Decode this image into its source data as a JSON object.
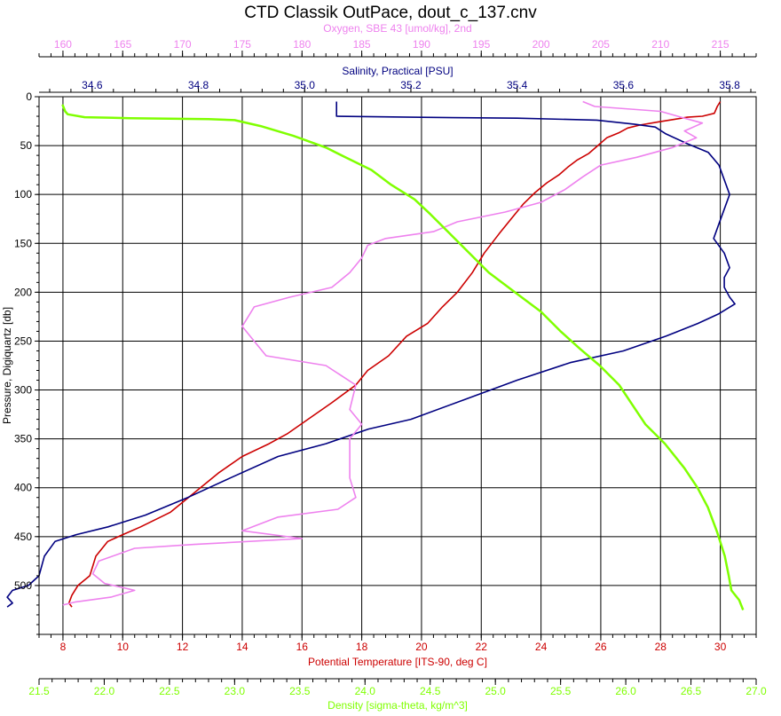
{
  "chart_data": {
    "type": "line",
    "title": "CTD Classik OutPace, dout_c_137.cnv",
    "y_axis": {
      "label": "Pressure, Digiquartz [db]",
      "range": [
        0,
        550
      ],
      "inverted": true,
      "ticks": [
        0,
        50,
        100,
        150,
        200,
        250,
        300,
        350,
        400,
        450,
        500
      ]
    },
    "x_axes": [
      {
        "id": "oxygen",
        "label": "Oxygen, SBE 43 [umol/kg], 2nd",
        "position": "top",
        "color": "#ee82ee",
        "range": [
          158,
          218
        ],
        "ticks": [
          160,
          165,
          170,
          175,
          180,
          185,
          190,
          195,
          200,
          205,
          210,
          215
        ],
        "decimals": 0
      },
      {
        "id": "salinity",
        "label": "Salinity, Practical [PSU]",
        "position": "top",
        "color": "#000080",
        "range": [
          34.5,
          35.85
        ],
        "ticks": [
          34.6,
          34.8,
          35.0,
          35.2,
          35.4,
          35.6,
          35.8
        ],
        "decimals": 1
      },
      {
        "id": "temperature",
        "label": "Potential Temperature [ITS-90, deg C]",
        "position": "bottom",
        "color": "#cc0000",
        "range": [
          7.2,
          31.2
        ],
        "ticks": [
          8,
          10,
          12,
          14,
          16,
          18,
          20,
          22,
          24,
          26,
          28,
          30
        ],
        "decimals": 0
      },
      {
        "id": "density",
        "label": "Density [sigma-theta, kg/m^3]",
        "position": "bottom",
        "color": "#7fff00",
        "range": [
          21.5,
          27.0
        ],
        "ticks": [
          21.5,
          22.0,
          22.5,
          23.0,
          23.5,
          24.0,
          24.5,
          25.0,
          25.5,
          26.0,
          26.5,
          27.0
        ],
        "decimals": 1
      }
    ],
    "grid": true,
    "series": [
      {
        "axis": "temperature",
        "color": "#cc0000",
        "points": [
          [
            30.0,
            5
          ],
          [
            29.9,
            10
          ],
          [
            29.8,
            17
          ],
          [
            29.4,
            20
          ],
          [
            28.9,
            21
          ],
          [
            28.7,
            22
          ],
          [
            28.5,
            23
          ],
          [
            27.9,
            26
          ],
          [
            27.3,
            29
          ],
          [
            26.9,
            32
          ],
          [
            26.6,
            37
          ],
          [
            26.2,
            42
          ],
          [
            25.9,
            50
          ],
          [
            25.6,
            58
          ],
          [
            25.2,
            65
          ],
          [
            24.9,
            72
          ],
          [
            24.6,
            80
          ],
          [
            24.2,
            88
          ],
          [
            23.8,
            98
          ],
          [
            23.4,
            110
          ],
          [
            23.0,
            125
          ],
          [
            22.6,
            140
          ],
          [
            22.1,
            160
          ],
          [
            21.7,
            180
          ],
          [
            21.2,
            200
          ],
          [
            20.7,
            215
          ],
          [
            20.2,
            232
          ],
          [
            19.5,
            245
          ],
          [
            18.9,
            265
          ],
          [
            18.2,
            280
          ],
          [
            17.8,
            295
          ],
          [
            17.0,
            313
          ],
          [
            16.2,
            330
          ],
          [
            15.5,
            345
          ],
          [
            14.9,
            355
          ],
          [
            14.0,
            368
          ],
          [
            13.2,
            385
          ],
          [
            12.4,
            405
          ],
          [
            11.6,
            425
          ],
          [
            10.6,
            440
          ],
          [
            10.0,
            448
          ],
          [
            9.5,
            455
          ],
          [
            9.1,
            470
          ],
          [
            8.9,
            490
          ],
          [
            8.5,
            500
          ],
          [
            8.3,
            510
          ],
          [
            8.2,
            518
          ],
          [
            8.3,
            522
          ]
        ]
      },
      {
        "axis": "salinity",
        "color": "#000080",
        "points": [
          [
            35.06,
            5
          ],
          [
            35.06,
            20
          ],
          [
            35.2,
            21
          ],
          [
            35.4,
            22
          ],
          [
            35.55,
            24
          ],
          [
            35.62,
            28
          ],
          [
            35.66,
            31
          ],
          [
            35.68,
            38
          ],
          [
            35.72,
            48
          ],
          [
            35.76,
            57
          ],
          [
            35.78,
            70
          ],
          [
            35.79,
            85
          ],
          [
            35.8,
            100
          ],
          [
            35.79,
            115
          ],
          [
            35.78,
            130
          ],
          [
            35.77,
            145
          ],
          [
            35.79,
            160
          ],
          [
            35.8,
            175
          ],
          [
            35.79,
            185
          ],
          [
            35.79,
            195
          ],
          [
            35.8,
            205
          ],
          [
            35.81,
            212
          ],
          [
            35.78,
            222
          ],
          [
            35.74,
            232
          ],
          [
            35.68,
            245
          ],
          [
            35.6,
            260
          ],
          [
            35.5,
            272
          ],
          [
            35.4,
            290
          ],
          [
            35.3,
            310
          ],
          [
            35.2,
            330
          ],
          [
            35.12,
            340
          ],
          [
            35.04,
            355
          ],
          [
            34.95,
            368
          ],
          [
            34.86,
            390
          ],
          [
            34.78,
            410
          ],
          [
            34.7,
            428
          ],
          [
            34.63,
            440
          ],
          [
            34.57,
            448
          ],
          [
            34.53,
            455
          ],
          [
            34.51,
            470
          ],
          [
            34.5,
            490
          ],
          [
            34.48,
            500
          ],
          [
            34.45,
            505
          ],
          [
            34.44,
            512
          ],
          [
            34.45,
            518
          ],
          [
            34.44,
            522
          ]
        ]
      },
      {
        "axis": "oxygen",
        "color": "#ee82ee",
        "points": [
          [
            203.5,
            5
          ],
          [
            204.5,
            10
          ],
          [
            210,
            15
          ],
          [
            212,
            22
          ],
          [
            213.5,
            27
          ],
          [
            212,
            35
          ],
          [
            213,
            42
          ],
          [
            211,
            52
          ],
          [
            208,
            62
          ],
          [
            205,
            70
          ],
          [
            203.5,
            82
          ],
          [
            202,
            95
          ],
          [
            200,
            108
          ],
          [
            197,
            118
          ],
          [
            193,
            128
          ],
          [
            191,
            138
          ],
          [
            187,
            145
          ],
          [
            185.5,
            152
          ],
          [
            185,
            165
          ],
          [
            184,
            180
          ],
          [
            182.5,
            195
          ],
          [
            179,
            205
          ],
          [
            176,
            215
          ],
          [
            175,
            235
          ],
          [
            176,
            250
          ],
          [
            177,
            265
          ],
          [
            182,
            275
          ],
          [
            184.5,
            295
          ],
          [
            184,
            320
          ],
          [
            185,
            335
          ],
          [
            184,
            350
          ],
          [
            184,
            370
          ],
          [
            184,
            390
          ],
          [
            184.5,
            410
          ],
          [
            183,
            422
          ],
          [
            178,
            430
          ],
          [
            175,
            444
          ],
          [
            180,
            452
          ],
          [
            171,
            458
          ],
          [
            166,
            462
          ],
          [
            163,
            475
          ],
          [
            162.5,
            488
          ],
          [
            163.5,
            498
          ],
          [
            166,
            505
          ],
          [
            164,
            512
          ],
          [
            161,
            517
          ],
          [
            160,
            520
          ]
        ]
      },
      {
        "axis": "density",
        "color": "#7fff00",
        "points": [
          [
            21.68,
            8
          ],
          [
            21.7,
            15
          ],
          [
            21.72,
            18
          ],
          [
            21.85,
            21
          ],
          [
            22.2,
            22
          ],
          [
            22.8,
            23
          ],
          [
            23.0,
            24
          ],
          [
            23.2,
            30
          ],
          [
            23.45,
            40
          ],
          [
            23.7,
            52
          ],
          [
            23.85,
            62
          ],
          [
            24.05,
            75
          ],
          [
            24.2,
            90
          ],
          [
            24.38,
            105
          ],
          [
            24.5,
            120
          ],
          [
            24.65,
            140
          ],
          [
            24.8,
            160
          ],
          [
            24.95,
            180
          ],
          [
            25.15,
            200
          ],
          [
            25.35,
            220
          ],
          [
            25.5,
            240
          ],
          [
            25.65,
            258
          ],
          [
            25.8,
            275
          ],
          [
            25.95,
            295
          ],
          [
            26.05,
            315
          ],
          [
            26.15,
            335
          ],
          [
            26.3,
            355
          ],
          [
            26.45,
            380
          ],
          [
            26.55,
            400
          ],
          [
            26.63,
            420
          ],
          [
            26.7,
            445
          ],
          [
            26.76,
            470
          ],
          [
            26.79,
            490
          ],
          [
            26.81,
            505
          ],
          [
            26.87,
            515
          ],
          [
            26.9,
            525
          ]
        ]
      }
    ]
  }
}
